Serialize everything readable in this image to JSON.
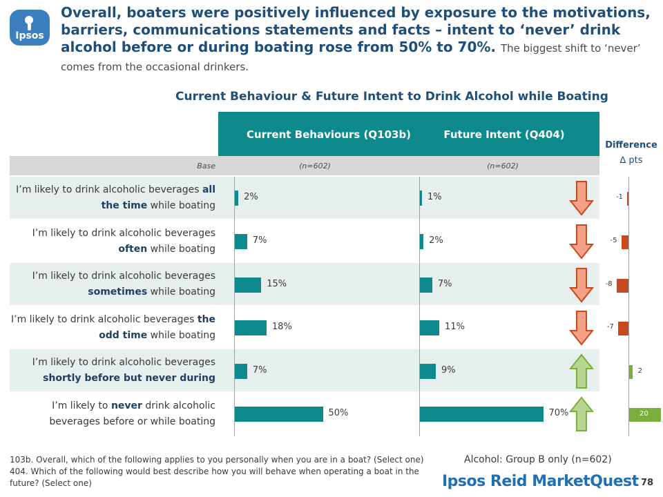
{
  "logo_text": "Ipsos",
  "headline": {
    "bold": "Overall, boaters were positively influenced by exposure to the motivations, barriers, communications statements and facts – intent to ‘never’ drink alcohol before or during boating rose from 50% to 70%.",
    "normal": "The biggest shift to ‘never’ comes from the occasional drinkers."
  },
  "chart_data": {
    "type": "bar",
    "title": "Current Behaviour & Future Intent to Drink Alcohol while Boating",
    "columns": [
      "Current Behaviours (Q103b)",
      "Future Intent (Q404)"
    ],
    "difference_header": "Difference",
    "difference_unit": "∆ pts",
    "base_label": "Base",
    "base_values": [
      "(n=602)",
      "(n=602)"
    ],
    "categories": [
      {
        "pre": "I’m likely to drink alcoholic beverages",
        "em": "all the time",
        "post": "while boating"
      },
      {
        "pre": "I’m likely to drink alcoholic beverages",
        "em": "often",
        "post": "while boating"
      },
      {
        "pre": "I’m likely to drink alcoholic beverages",
        "em": "sometimes",
        "post": "while boating"
      },
      {
        "pre": "I’m likely to drink alcoholic beverages",
        "em": "the odd time",
        "post": "while boating"
      },
      {
        "pre": "I’m likely to  drink alcoholic beverages",
        "em": "shortly before but never during",
        "post": ""
      },
      {
        "pre": "I’m likely to",
        "em": "never",
        "post": "drink alcoholic beverages before or while boating"
      }
    ],
    "series": [
      {
        "name": "Current Behaviours (Q103b)",
        "values": [
          2,
          7,
          15,
          18,
          7,
          50
        ],
        "labels": [
          "2%",
          "7%",
          "15%",
          "18%",
          "7%",
          "50%"
        ]
      },
      {
        "name": "Future Intent (Q404)",
        "values": [
          1,
          2,
          7,
          11,
          9,
          70
        ],
        "labels": [
          "1%",
          "2%",
          "7%",
          "11%",
          "9%",
          "70%"
        ]
      }
    ],
    "difference": [
      -1,
      -5,
      -8,
      -7,
      2,
      20
    ],
    "difference_labels": [
      "-1",
      "-5",
      "-8",
      "-7",
      "2",
      "20"
    ],
    "arrows": [
      "down",
      "down",
      "down",
      "down",
      "up",
      "up"
    ],
    "colors": {
      "bar": "#0e8a8c",
      "header_band": "#0e8a8c",
      "negative": "#c9491f",
      "positive": "#7cae3e",
      "arrow_down": "#f4a186",
      "arrow_up": "#b7d68f",
      "row_shade": "#e6eeee"
    }
  },
  "footnotes": [
    "103b. Overall, which of the following applies to you personally when you are in a boat? (Select one)",
    "404. Which of the following would best describe how you will behave when operating a boat in the future? (Select one)"
  ],
  "note": "Alcohol: Group B only (n=602)",
  "brand": "Ipsos Reid MarketQuest",
  "page_number": "78"
}
